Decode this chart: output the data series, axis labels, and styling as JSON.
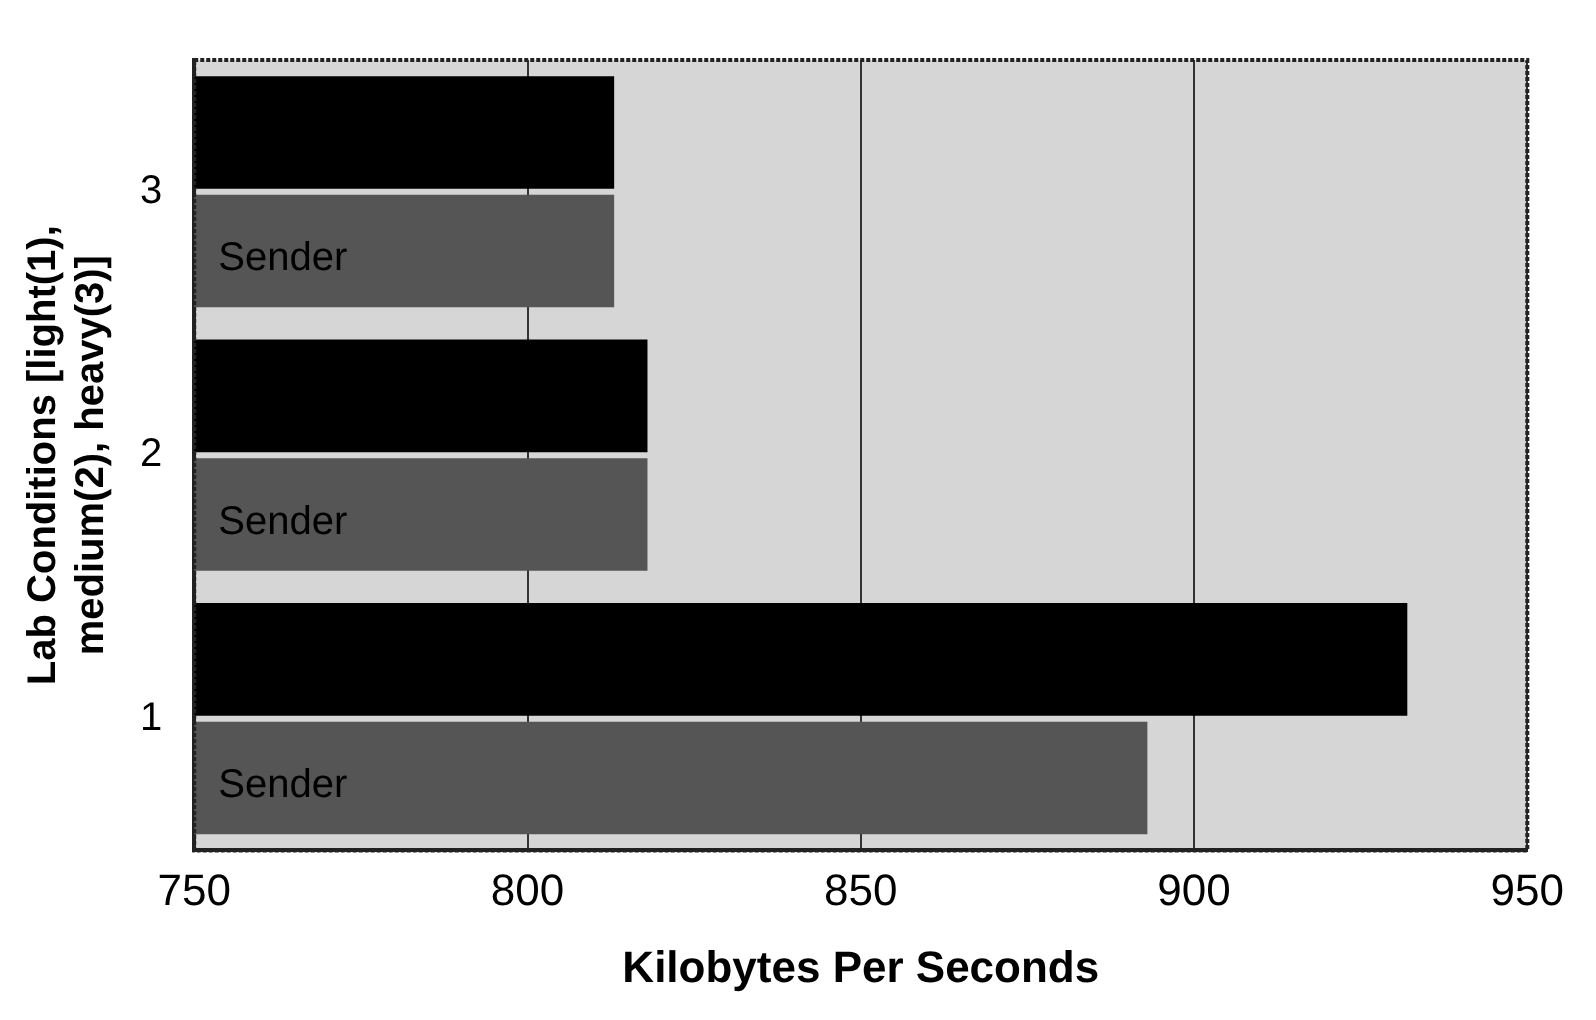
{
  "chart_data": {
    "type": "bar",
    "orientation": "horizontal",
    "xlabel": "Kilobytes Per Seconds",
    "ylabel": "Lab Conditions [light(1), medium(2), heavy(3)]",
    "categories": [
      "3",
      "2",
      "1"
    ],
    "series": [
      {
        "color": "#000000",
        "values": [
          813,
          818,
          932
        ]
      },
      {
        "name": "Sender",
        "color": "#555555",
        "values": [
          813,
          818,
          893
        ]
      }
    ],
    "xlim": [
      750,
      950
    ],
    "xticks": [
      750,
      800,
      850,
      900,
      950
    ],
    "grid": "x",
    "legend": false
  }
}
